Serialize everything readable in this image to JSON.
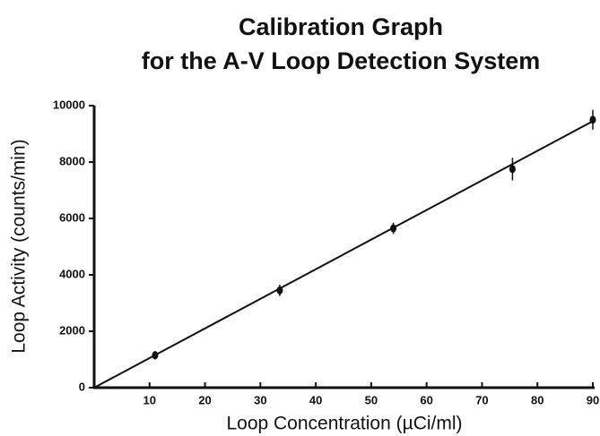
{
  "chart_data": {
    "type": "scatter",
    "title": [
      "Calibration Graph",
      "for the A-V Loop Detection System"
    ],
    "x_label": "Loop Concentration (µCi/ml)",
    "y_label": "Loop Activity (counts/min)",
    "series": [
      {
        "x": [
          11,
          33.5,
          54,
          75.5,
          90
        ],
        "y": [
          1150,
          3450,
          5650,
          7750,
          9500
        ],
        "errors": [
          150,
          200,
          200,
          400,
          350
        ],
        "color": "#111111"
      }
    ],
    "fit": {
      "x": [
        0,
        90
      ],
      "y": [
        0,
        9450
      ],
      "color": "#111111"
    },
    "xlim": [
      0,
      90
    ],
    "ylim": [
      0,
      10000
    ],
    "xticks": [
      10,
      20,
      30,
      40,
      50,
      60,
      70,
      80,
      90
    ],
    "yticks": [
      0,
      2000,
      4000,
      6000,
      8000,
      10000
    ],
    "grid": false
  }
}
